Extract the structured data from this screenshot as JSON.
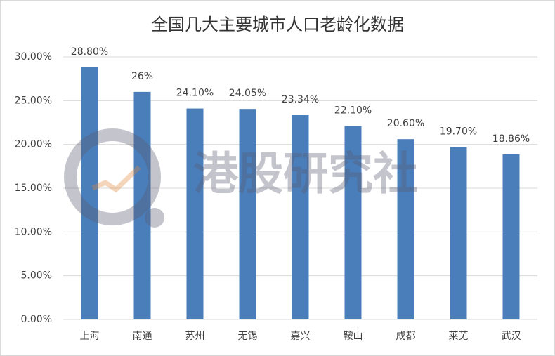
{
  "chart_data": {
    "type": "bar",
    "title": "全国几大主要城市人口老龄化数据",
    "watermark": "港股研究社",
    "categories": [
      "上海",
      "南通",
      "苏州",
      "无锡",
      "嘉兴",
      "鞍山",
      "成都",
      "莱芜",
      "武汉"
    ],
    "values": [
      28.8,
      26,
      24.1,
      24.05,
      23.34,
      22.1,
      20.6,
      19.7,
      18.86
    ],
    "value_labels": [
      "28.80%",
      "26%",
      "24.10%",
      "24.05%",
      "23.34%",
      "22.10%",
      "20.60%",
      "19.70%",
      "18.86%"
    ],
    "color": "#4a7ebb",
    "ylim": [
      0,
      30
    ],
    "yticks": [
      {
        "value": 0,
        "label": "0.00%"
      },
      {
        "value": 5,
        "label": "5.00%"
      },
      {
        "value": 10,
        "label": "10.00%"
      },
      {
        "value": 15,
        "label": "15.00%"
      },
      {
        "value": 20,
        "label": "20.00%"
      },
      {
        "value": 25,
        "label": "25.00%"
      },
      {
        "value": 30,
        "label": "30.00%"
      }
    ],
    "grid": true
  }
}
